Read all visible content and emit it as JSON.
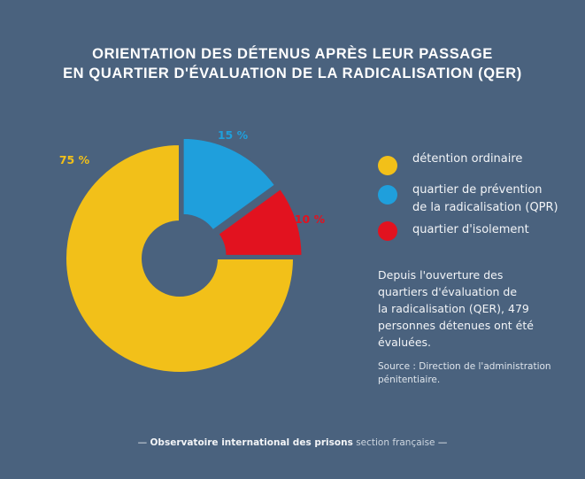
{
  "title": {
    "line1": "Orientation des détenus après leur passage",
    "line2": "en quartier d'évaluation de la radicalisation (QER)"
  },
  "colors": {
    "background": "#4a627e",
    "detention": "#f2c019",
    "qpr": "#1f9fdc",
    "isolement": "#e2121f",
    "divider": "#4a627e"
  },
  "chart_data": {
    "type": "pie",
    "title": "Orientation des détenus après leur passage en quartier d'évaluation de la radicalisation (QER)",
    "categories": [
      "détention ordinaire",
      "quartier de prévention de la radicalisation (QPR)",
      "quartier d'isolement"
    ],
    "values": [
      75,
      15,
      10
    ],
    "labels": [
      "75 %",
      "15 %",
      "10 %"
    ],
    "colors": [
      "#f2c019",
      "#1f9fdc",
      "#e2121f"
    ],
    "donut": true,
    "legend": "right"
  },
  "legend": [
    {
      "lines": [
        "détention ordinaire"
      ],
      "color": "#f2c019"
    },
    {
      "lines": [
        "quartier de prévention",
        "de la radicalisation (QPR)"
      ],
      "color": "#1f9fdc"
    },
    {
      "lines": [
        "quartier d'isolement"
      ],
      "color": "#e2121f"
    }
  ],
  "note": {
    "lines": [
      "Depuis l'ouverture des",
      "quartiers d'évaluation de",
      "la radicalisation (QER), 479",
      "personnes détenues ont été",
      "évaluées."
    ]
  },
  "source": {
    "lines": [
      "Source : Direction de l'administration",
      "pénitentiaire."
    ]
  },
  "footer": {
    "dash_left": "—",
    "organization": "Observatoire international des prisons",
    "section": "section française",
    "dash_right": "—"
  }
}
